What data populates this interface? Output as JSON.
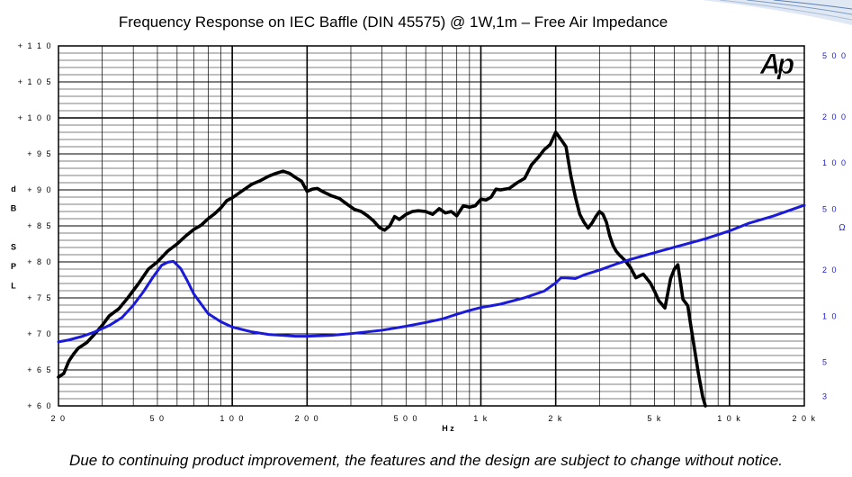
{
  "chart_data": {
    "type": "line",
    "title": "Frequency Response on IEC Baffle (DIN 45575)  @ 1W,1m – Free Air Impedance",
    "xlabel": "H z",
    "x_scale": "log",
    "xlim": [
      20,
      20000
    ],
    "x_tick_labels": [
      {
        "value": 20,
        "label": "2 0"
      },
      {
        "value": 50,
        "label": "5 0"
      },
      {
        "value": 100,
        "label": "1 0 0"
      },
      {
        "value": 200,
        "label": "2 0 0"
      },
      {
        "value": 500,
        "label": "5 0 0"
      },
      {
        "value": 1000,
        "label": "1 k"
      },
      {
        "value": 2000,
        "label": "2 k"
      },
      {
        "value": 5000,
        "label": "5 k"
      },
      {
        "value": 10000,
        "label": "1 0 k"
      },
      {
        "value": 20000,
        "label": "2 0 k"
      }
    ],
    "y_left": {
      "label_letters": [
        "d",
        "B",
        "",
        "S",
        "P",
        "L"
      ],
      "lim": [
        60,
        110
      ],
      "tick_labels": [
        {
          "value": 110,
          "label": "+ 1 1 0"
        },
        {
          "value": 105,
          "label": "+ 1 0 5"
        },
        {
          "value": 100,
          "label": "+ 1 0 0"
        },
        {
          "value": 95,
          "label": "+ 9 5"
        },
        {
          "value": 90,
          "label": "+ 9 0"
        },
        {
          "value": 85,
          "label": "+ 8 5"
        },
        {
          "value": 80,
          "label": "+ 8 0"
        },
        {
          "value": 75,
          "label": "+ 7 5"
        },
        {
          "value": 70,
          "label": "+ 7 0"
        },
        {
          "value": 65,
          "label": "+ 6 5"
        },
        {
          "value": 60,
          "label": "+ 6 0"
        }
      ]
    },
    "y_right": {
      "label": "Ω",
      "scale": "log",
      "lim": [
        2.6,
        580
      ],
      "tick_labels": [
        {
          "value": 500,
          "label": "5 0 0"
        },
        {
          "value": 200,
          "label": "2 0 0"
        },
        {
          "value": 100,
          "label": "1 0 0"
        },
        {
          "value": 50,
          "label": "5 0"
        },
        {
          "value": 20,
          "label": "2 0"
        },
        {
          "value": 10,
          "label": "1 0"
        },
        {
          "value": 5,
          "label": "5"
        },
        {
          "value": 3,
          "label": "3"
        }
      ]
    },
    "grid": true,
    "logo": "Ap",
    "series": [
      {
        "axis": "left",
        "color": "#000000",
        "x": [
          20,
          21,
          22,
          23,
          24,
          26,
          28,
          30,
          32,
          35,
          38,
          42,
          46,
          50,
          55,
          60,
          65,
          70,
          75,
          80,
          85,
          90,
          95,
          100,
          110,
          120,
          130,
          140,
          150,
          160,
          170,
          180,
          190,
          200,
          210,
          220,
          230,
          250,
          270,
          290,
          310,
          330,
          350,
          370,
          390,
          410,
          430,
          450,
          470,
          500,
          530,
          560,
          600,
          640,
          680,
          720,
          760,
          800,
          850,
          900,
          950,
          1000,
          1050,
          1100,
          1150,
          1200,
          1300,
          1400,
          1500,
          1600,
          1700,
          1800,
          1900,
          2000,
          2050,
          2100,
          2200,
          2300,
          2400,
          2500,
          2600,
          2700,
          2800,
          2900,
          3000,
          3100,
          3200,
          3300,
          3400,
          3500,
          3600,
          3800,
          4000,
          4200,
          4500,
          4800,
          5000,
          5200,
          5500,
          5800,
          6000,
          6200,
          6500,
          6800,
          7000,
          7500,
          7800,
          8000
        ],
        "y": [
          64.0,
          64.5,
          66.2,
          67.2,
          68.0,
          68.8,
          70.0,
          71.2,
          72.5,
          73.5,
          75.0,
          77.0,
          79.0,
          80.0,
          81.5,
          82.5,
          83.6,
          84.5,
          85.1,
          86.0,
          86.7,
          87.5,
          88.5,
          88.9,
          89.9,
          90.8,
          91.3,
          91.9,
          92.3,
          92.6,
          92.3,
          91.7,
          91.2,
          89.8,
          90.1,
          90.2,
          89.8,
          89.2,
          88.8,
          88.0,
          87.3,
          87.0,
          86.4,
          85.7,
          84.8,
          84.4,
          85.0,
          86.3,
          85.9,
          86.6,
          87.0,
          87.1,
          87.0,
          86.6,
          87.4,
          86.8,
          87.0,
          86.4,
          87.8,
          87.6,
          87.8,
          88.7,
          88.6,
          89.0,
          90.1,
          90.0,
          90.2,
          91.0,
          91.6,
          93.5,
          94.5,
          95.6,
          96.3,
          98.0,
          97.5,
          97.0,
          96.0,
          92.0,
          89.0,
          86.6,
          85.5,
          84.7,
          85.4,
          86.3,
          87.0,
          86.6,
          85.5,
          83.6,
          82.3,
          81.5,
          81.0,
          80.2,
          79.2,
          77.8,
          78.3,
          77.1,
          75.9,
          74.6,
          73.6,
          77.7,
          79.0,
          79.6,
          74.8,
          73.9,
          71.0,
          64.5,
          61.3,
          60.0
        ]
      },
      {
        "axis": "right",
        "color": "#1a1ad8",
        "x": [
          20,
          22,
          25,
          28,
          32,
          36,
          40,
          44,
          48,
          52,
          55,
          58,
          62,
          66,
          70,
          75,
          80,
          90,
          100,
          120,
          140,
          160,
          180,
          200,
          250,
          300,
          400,
          500,
          600,
          700,
          800,
          900,
          1000,
          1100,
          1200,
          1500,
          1800,
          2000,
          2100,
          2200,
          2400,
          2600,
          3000,
          3500,
          4000,
          5000,
          6000,
          8000,
          10000,
          12000,
          15000,
          20000
        ],
        "y": [
          6.8,
          7.0,
          7.4,
          7.9,
          8.7,
          9.8,
          11.8,
          14.5,
          18.0,
          21.5,
          22.5,
          22.8,
          20.5,
          17.0,
          14.0,
          12.0,
          10.4,
          9.2,
          8.5,
          7.9,
          7.6,
          7.5,
          7.4,
          7.4,
          7.5,
          7.7,
          8.1,
          8.6,
          9.1,
          9.6,
          10.3,
          10.9,
          11.4,
          11.7,
          12.0,
          13.2,
          14.6,
          16.5,
          17.8,
          17.8,
          17.6,
          18.6,
          20.0,
          21.9,
          23.5,
          26.0,
          28.2,
          32.0,
          36.0,
          40.5,
          45.0,
          53.0
        ]
      }
    ]
  },
  "footnote": "Due to continuing product improvement, the features and the design are subject to change without notice."
}
